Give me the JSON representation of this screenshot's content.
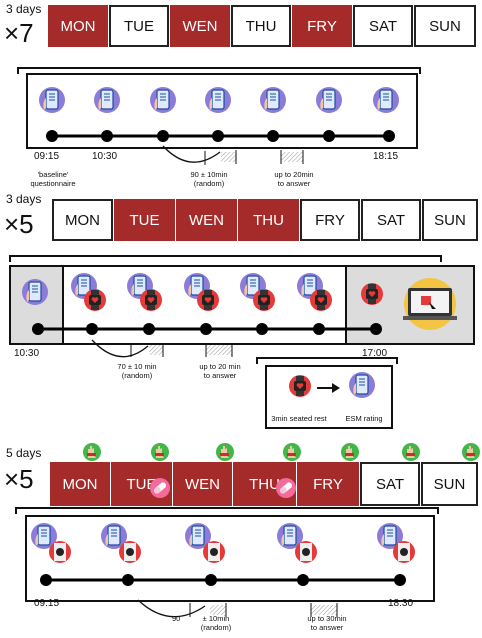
{
  "colors": {
    "active_day": "#a52a2a",
    "phone_circle": "#8c7bd8",
    "heart_red": "#e43a3a",
    "watch_green": "#43b649",
    "laptop_circle": "#f4c542"
  },
  "section1": {
    "days_label": "3 days",
    "multiplier": "×7",
    "days": [
      {
        "label": "MON",
        "active": true
      },
      {
        "label": "TUE",
        "active": false
      },
      {
        "label": "WEN",
        "active": true
      },
      {
        "label": "THU",
        "active": false
      },
      {
        "label": "FRY",
        "active": true
      },
      {
        "label": "SAT",
        "active": false
      },
      {
        "label": "SUN",
        "active": false
      }
    ],
    "start_time": "09:15",
    "second_time": "10:30",
    "end_time": "18:15",
    "baseline_line1": "'baseline'",
    "baseline_line2": "questionnaire",
    "interval_line1": "90 ± 10min",
    "interval_line2": "(random)",
    "answer_line1": "up to 20min",
    "answer_line2": "to answer",
    "phone_icon": "phone-icon"
  },
  "section2": {
    "days_label": "3 days",
    "multiplier": "×5",
    "days": [
      {
        "label": "MON",
        "active": false
      },
      {
        "label": "TUE",
        "active": true
      },
      {
        "label": "WEN",
        "active": true
      },
      {
        "label": "THU",
        "active": true
      },
      {
        "label": "FRY",
        "active": false
      },
      {
        "label": "SAT",
        "active": false
      },
      {
        "label": "SUN",
        "active": false
      }
    ],
    "start_time": "10:30",
    "end_time": "17:00",
    "interval_line1": "70  ± 10 min",
    "interval_line2": "(random)",
    "answer_line1": "up to 20 min",
    "answer_line2": "to answer",
    "legend_rest": "3min seated rest",
    "legend_esm": "ESM rating"
  },
  "section3": {
    "days_label": "5 days",
    "multiplier": "×5",
    "days": [
      {
        "label": "MON",
        "active": true
      },
      {
        "label": "TUE",
        "active": true
      },
      {
        "label": "WEN",
        "active": true
      },
      {
        "label": "THU",
        "active": true
      },
      {
        "label": "FRY",
        "active": true
      },
      {
        "label": "SAT",
        "active": false
      },
      {
        "label": "SUN",
        "active": false
      }
    ],
    "start_time": "09:15",
    "end_time": "18:30",
    "interval_a": "90",
    "interval_b": "± 10min",
    "interval_c": "(random)",
    "answer_line1": "up to 30min",
    "answer_line2": "to answer"
  }
}
